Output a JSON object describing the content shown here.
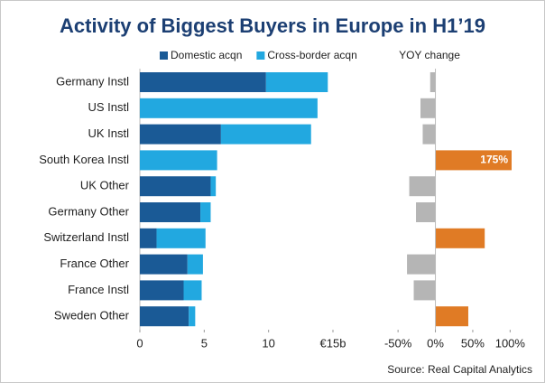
{
  "title": "Activity of Biggest Buyers in Europe in H1’19",
  "source": "Source: Real Capital Analytics",
  "chart_data": [
    {
      "type": "bar",
      "stacked": true,
      "orientation": "horizontal",
      "categories": [
        "Germany Instl",
        "US Instl",
        "UK Instl",
        "South Korea Instl",
        "UK Other",
        "Germany Other",
        "Switzerland Instl",
        "France Other",
        "France Instl",
        "Sweden Other"
      ],
      "series": [
        {
          "name": "Domestic acqn",
          "color": "#1a5a96",
          "values": [
            9.8,
            0,
            6.3,
            0,
            5.5,
            4.7,
            1.3,
            3.7,
            3.4,
            3.8
          ]
        },
        {
          "name": "Cross-border acqn",
          "color": "#22a8e0",
          "values": [
            4.8,
            13.8,
            7.0,
            6.0,
            0.4,
            0.8,
            3.8,
            1.2,
            1.4,
            0.5
          ]
        }
      ],
      "xlim": [
        0,
        15
      ],
      "xticks": [
        0,
        5,
        10,
        {
          "value": 15,
          "label": "€15b"
        }
      ]
    },
    {
      "type": "bar",
      "orientation": "horizontal",
      "title": "YOY change",
      "values": [
        -7,
        -20,
        -17,
        175,
        -35,
        -26,
        66,
        -38,
        -29,
        44
      ],
      "value_labels": [
        null,
        null,
        null,
        "175%",
        null,
        null,
        null,
        null,
        null,
        null
      ],
      "positive_color": "#e07b25",
      "negative_color": "#b5b5b5",
      "xlim": [
        -55,
        102
      ],
      "xticks": [
        {
          "value": -50,
          "label": "-50%"
        },
        {
          "value": 0,
          "label": "0%"
        },
        {
          "value": 50,
          "label": "50%"
        },
        {
          "value": 100,
          "label": "100%"
        }
      ]
    }
  ]
}
